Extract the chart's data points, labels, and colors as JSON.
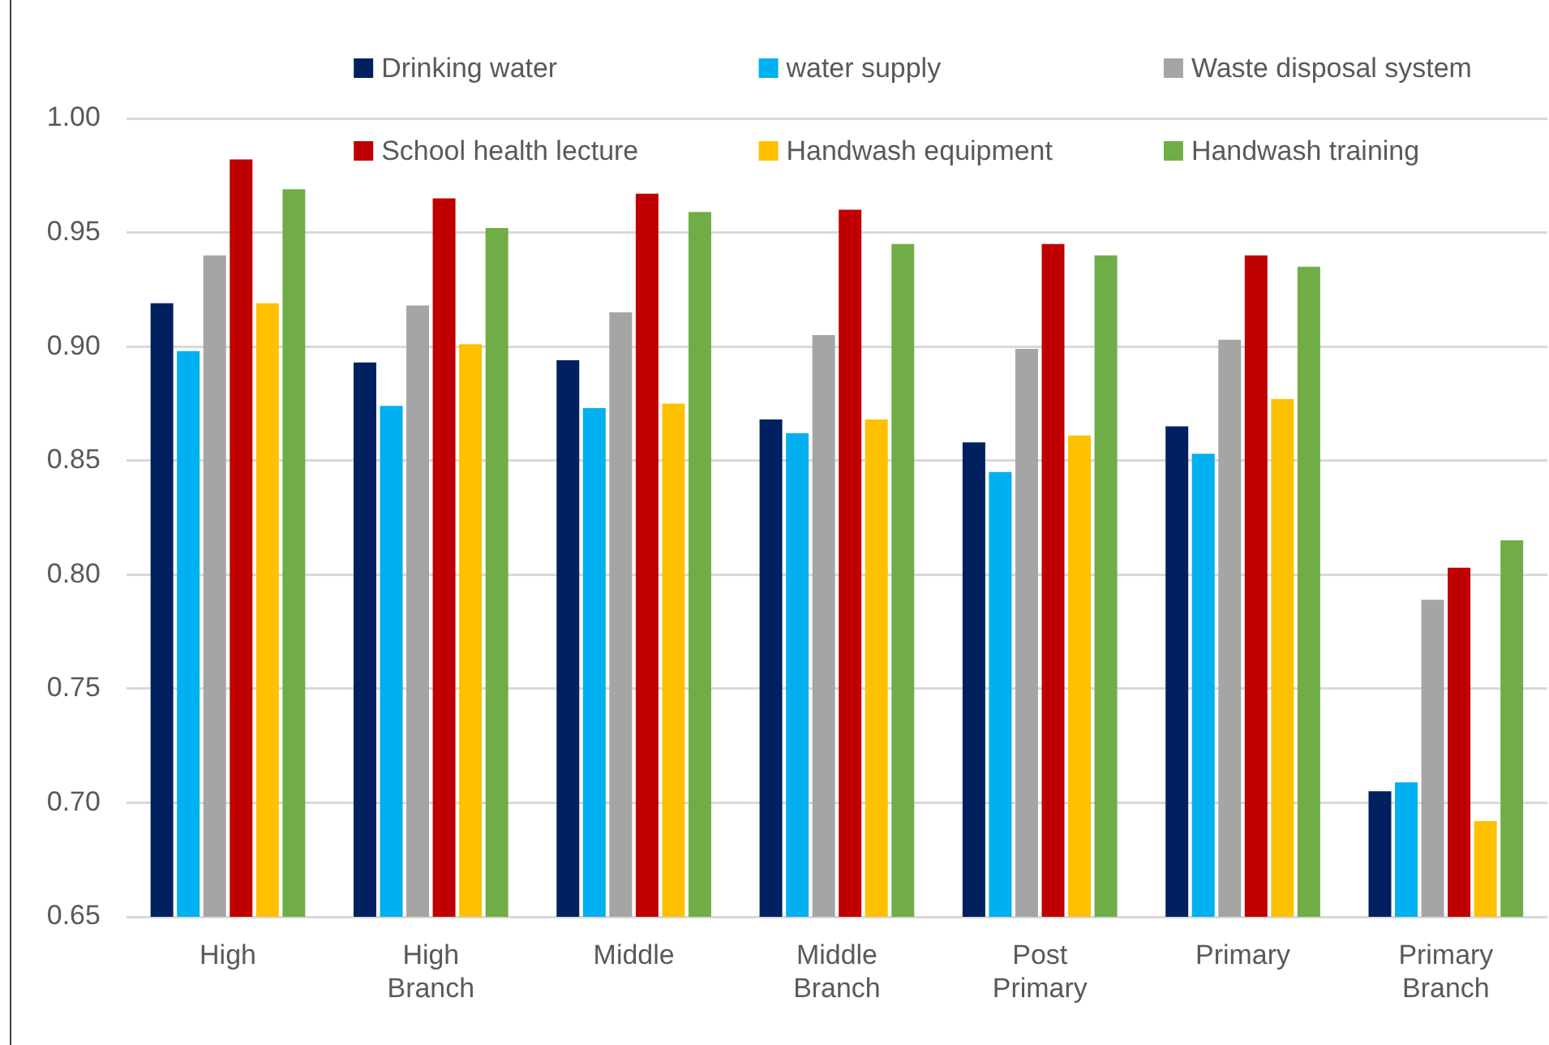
{
  "chart_data": {
    "type": "bar",
    "categories": [
      "High",
      "High Branch",
      "Middle",
      "Middle Branch",
      "Post Primary",
      "Primary",
      "Primary Branch"
    ],
    "series": [
      {
        "name": "Drinking water",
        "color": "#002060",
        "values": [
          0.919,
          0.893,
          0.894,
          0.868,
          0.858,
          0.865,
          0.705
        ]
      },
      {
        "name": "water supply",
        "color": "#00b0f0",
        "values": [
          0.898,
          0.874,
          0.873,
          0.862,
          0.845,
          0.853,
          0.709
        ]
      },
      {
        "name": "Waste disposal system",
        "color": "#a5a5a5",
        "values": [
          0.94,
          0.918,
          0.915,
          0.905,
          0.899,
          0.903,
          0.789
        ]
      },
      {
        "name": "School health lecture",
        "color": "#c00000",
        "values": [
          0.982,
          0.965,
          0.967,
          0.96,
          0.945,
          0.94,
          0.803
        ]
      },
      {
        "name": "Handwash equipment",
        "color": "#ffc000",
        "values": [
          0.919,
          0.901,
          0.875,
          0.868,
          0.861,
          0.877,
          0.692
        ]
      },
      {
        "name": "Handwash training",
        "color": "#70ad47",
        "values": [
          0.969,
          0.952,
          0.959,
          0.945,
          0.94,
          0.935,
          0.815
        ]
      }
    ],
    "ylim": [
      0.65,
      1.0
    ],
    "yticks": [
      0.65,
      {
        "value": 0.7,
        "label": "0.70"
      },
      0.75,
      {
        "value": 0.8,
        "label": "0.80"
      },
      0.85,
      {
        "value": 0.9,
        "label": "0.90"
      },
      0.95,
      {
        "value": 1.0,
        "label": "1.00"
      }
    ],
    "grid": "y",
    "legend": "top"
  }
}
